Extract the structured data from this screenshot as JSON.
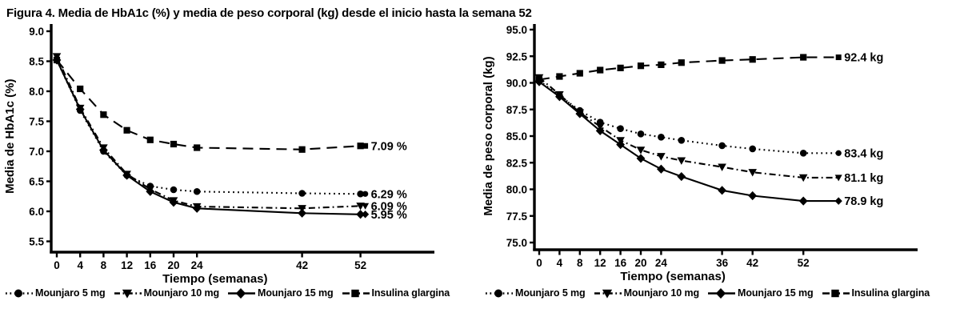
{
  "figure_title": "Figura 4. Media de HbA1c (%) y media de peso corporal (kg) desde el inicio hasta la semana 52",
  "legend_items": [
    {
      "label": "Mounjaro 5 mg",
      "marker": "circle",
      "line": "dotted"
    },
    {
      "label": "Mounjaro 10 mg",
      "marker": "triangle",
      "line": "dashdot"
    },
    {
      "label": "Mounjaro 15 mg",
      "marker": "diamond",
      "line": "solid"
    },
    {
      "label": "Insulina glargina",
      "marker": "square",
      "line": "longdash"
    }
  ],
  "chart_data": [
    {
      "type": "line",
      "title": "",
      "xlabel": "Tiempo (semanas)",
      "ylabel": "Media de HbA1c (%)",
      "ylim": [
        5.5,
        9.0
      ],
      "xlim": [
        0,
        62
      ],
      "grid": false,
      "legend_position": "bottom",
      "yticks": [
        "9.0",
        "8.5",
        "8.0",
        "7.5",
        "7.0",
        "6.5",
        "6.0",
        "5.5"
      ],
      "xticks": [
        0,
        4,
        8,
        12,
        16,
        20,
        24,
        42,
        52
      ],
      "x": [
        0,
        4,
        8,
        12,
        16,
        20,
        24,
        42,
        52
      ],
      "series": [
        {
          "name": "Mounjaro 5 mg",
          "marker": "circle",
          "line": "dotted",
          "values": [
            8.52,
            7.68,
            7.0,
            6.6,
            6.42,
            6.36,
            6.33,
            6.3,
            6.29
          ],
          "end_label": "6.29 %"
        },
        {
          "name": "Mounjaro 10 mg",
          "marker": "triangle",
          "line": "dashdot",
          "values": [
            8.58,
            7.72,
            7.06,
            6.62,
            6.37,
            6.18,
            6.08,
            6.05,
            6.09
          ],
          "end_label": "6.09 %"
        },
        {
          "name": "Mounjaro 15 mg",
          "marker": "diamond",
          "line": "solid",
          "values": [
            8.52,
            7.7,
            7.02,
            6.6,
            6.33,
            6.15,
            6.05,
            5.97,
            5.95
          ],
          "end_label": "5.95 %"
        },
        {
          "name": "Insulina glargina",
          "marker": "square",
          "line": "longdash",
          "values": [
            8.52,
            8.04,
            7.61,
            7.35,
            7.19,
            7.12,
            7.06,
            7.03,
            7.09
          ],
          "end_label": "7.09 %"
        }
      ]
    },
    {
      "type": "line",
      "title": "",
      "xlabel": "Tiempo (semanas)",
      "ylabel": "Media de peso corporal (kg)",
      "ylim": [
        75.0,
        95.0
      ],
      "xlim": [
        0,
        62
      ],
      "grid": false,
      "legend_position": "bottom",
      "yticks": [
        "95.0",
        "92.5",
        "90.0",
        "87.5",
        "85.0",
        "82.5",
        "80.0",
        "77.5",
        "75.0"
      ],
      "xticks": [
        0,
        4,
        8,
        12,
        16,
        20,
        24,
        36,
        42,
        52
      ],
      "x": [
        0,
        4,
        8,
        12,
        16,
        20,
        24,
        28,
        36,
        42,
        52
      ],
      "series": [
        {
          "name": "Mounjaro 5 mg",
          "marker": "circle",
          "line": "dotted",
          "values": [
            90.2,
            88.8,
            87.4,
            86.3,
            85.7,
            85.2,
            84.9,
            84.6,
            84.1,
            83.8,
            83.4
          ],
          "end_label": "83.4 kg"
        },
        {
          "name": "Mounjaro 10 mg",
          "marker": "triangle",
          "line": "dashdot",
          "values": [
            90.5,
            88.9,
            87.2,
            85.9,
            84.6,
            83.7,
            83.1,
            82.7,
            82.1,
            81.6,
            81.1
          ],
          "end_label": "81.1 kg"
        },
        {
          "name": "Mounjaro 15 mg",
          "marker": "diamond",
          "line": "solid",
          "values": [
            90.1,
            88.7,
            87.1,
            85.5,
            84.2,
            82.9,
            81.9,
            81.2,
            79.9,
            79.4,
            78.9
          ],
          "end_label": "78.9 kg"
        },
        {
          "name": "Insulina glargina",
          "marker": "square",
          "line": "longdash",
          "values": [
            90.3,
            90.6,
            90.9,
            91.2,
            91.4,
            91.6,
            91.7,
            91.9,
            92.1,
            92.2,
            92.4
          ],
          "end_label": "92.4 kg"
        }
      ]
    }
  ],
  "colors": {
    "ink": "#000000",
    "background": "#ffffff"
  }
}
